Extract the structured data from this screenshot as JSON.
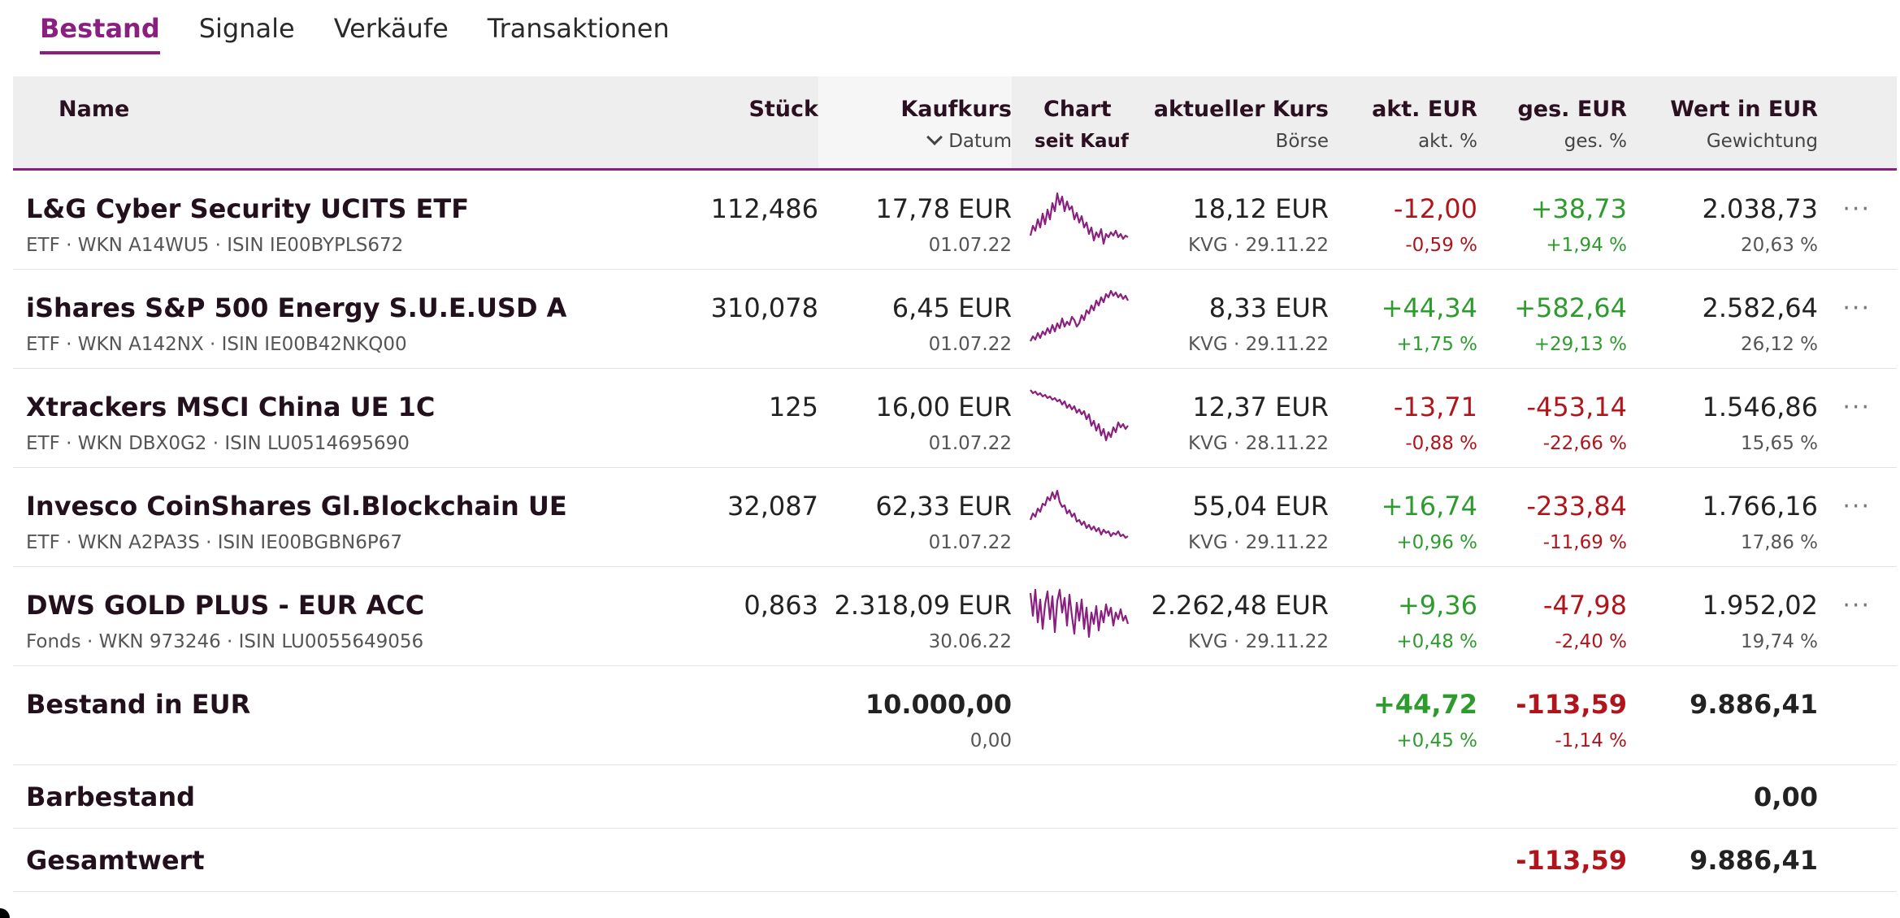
{
  "tabs": [
    {
      "label": "Bestand",
      "active": true
    },
    {
      "label": "Signale",
      "active": false
    },
    {
      "label": "Verkäufe",
      "active": false
    },
    {
      "label": "Transaktionen",
      "active": false
    }
  ],
  "header": {
    "name": "Name",
    "stueck": "Stück",
    "kaufkurs": "Kaufkurs",
    "datum": "Datum",
    "chart": "Chart",
    "seit_kauf": "seit Kauf",
    "aktueller_kurs": "aktueller Kurs",
    "boerse": "Börse",
    "akt_eur": "akt. EUR",
    "akt_pct": "akt. %",
    "ges_eur": "ges. EUR",
    "ges_pct": "ges. %",
    "wert": "Wert in EUR",
    "gewichtung": "Gewichtung"
  },
  "rows": [
    {
      "name": "L&G Cyber Security UCITS ETF",
      "sub": "ETF · WKN A14WU5 · ISIN IE00BYPLS672",
      "stueck": "112,486",
      "kaufkurs": "17,78 EUR",
      "datum": "01.07.22",
      "kurs": "18,12 EUR",
      "boerse": "KVG · 29.11.22",
      "akt_eur": "-12,00",
      "akt_pct": "-0,59 %",
      "ges_eur": "+38,73",
      "ges_pct": "+1,94 %",
      "wert": "2.038,73",
      "gewichtung": "20,63 %",
      "more": "···"
    },
    {
      "name": "iShares S&P 500 Energy S.U.E.USD A",
      "sub": "ETF · WKN A142NX · ISIN IE00B42NKQ00",
      "stueck": "310,078",
      "kaufkurs": "6,45 EUR",
      "datum": "01.07.22",
      "kurs": "8,33 EUR",
      "boerse": "KVG · 29.11.22",
      "akt_eur": "+44,34",
      "akt_pct": "+1,75 %",
      "ges_eur": "+582,64",
      "ges_pct": "+29,13 %",
      "wert": "2.582,64",
      "gewichtung": "26,12 %",
      "more": "···"
    },
    {
      "name": "Xtrackers MSCI China UE 1C",
      "sub": "ETF · WKN DBX0G2 · ISIN LU0514695690",
      "stueck": "125",
      "kaufkurs": "16,00 EUR",
      "datum": "01.07.22",
      "kurs": "12,37 EUR",
      "boerse": "KVG · 28.11.22",
      "akt_eur": "-13,71",
      "akt_pct": "-0,88 %",
      "ges_eur": "-453,14",
      "ges_pct": "-22,66 %",
      "wert": "1.546,86",
      "gewichtung": "15,65 %",
      "more": "···"
    },
    {
      "name": "Invesco CoinShares Gl.Blockchain UE",
      "sub": "ETF · WKN A2PA3S · ISIN IE00BGBN6P67",
      "stueck": "32,087",
      "kaufkurs": "62,33 EUR",
      "datum": "01.07.22",
      "kurs": "55,04 EUR",
      "boerse": "KVG · 29.11.22",
      "akt_eur": "+16,74",
      "akt_pct": "+0,96 %",
      "ges_eur": "-233,84",
      "ges_pct": "-11,69 %",
      "wert": "1.766,16",
      "gewichtung": "17,86 %",
      "more": "···"
    },
    {
      "name": "DWS GOLD PLUS - EUR ACC",
      "sub": "Fonds · WKN 973246 · ISIN LU0055649056",
      "stueck": "0,863",
      "kaufkurs": "2.318,09 EUR",
      "datum": "30.06.22",
      "kurs": "2.262,48 EUR",
      "boerse": "KVG · 29.11.22",
      "akt_eur": "+9,36",
      "akt_pct": "+0,48 %",
      "ges_eur": "-47,98",
      "ges_pct": "-2,40 %",
      "wert": "1.952,02",
      "gewichtung": "19,74 %",
      "more": "···"
    }
  ],
  "summary": {
    "label": "Bestand in EUR",
    "kaufwert": "10.000,00",
    "kaufwert_sub": "0,00",
    "akt_eur": "+44,72",
    "akt_pct": "+0,45 %",
    "ges_eur": "-113,59",
    "ges_pct": "-1,14 %",
    "wert": "9.886,41"
  },
  "cash": {
    "label": "Barbestand",
    "wert": "0,00"
  },
  "total": {
    "label": "Gesamtwert",
    "ges_eur": "-113,59",
    "wert": "9.886,41"
  },
  "colors": {
    "accent": "#8a1f7f",
    "positive": "#2e9b2e",
    "negative": "#b0151c"
  }
}
